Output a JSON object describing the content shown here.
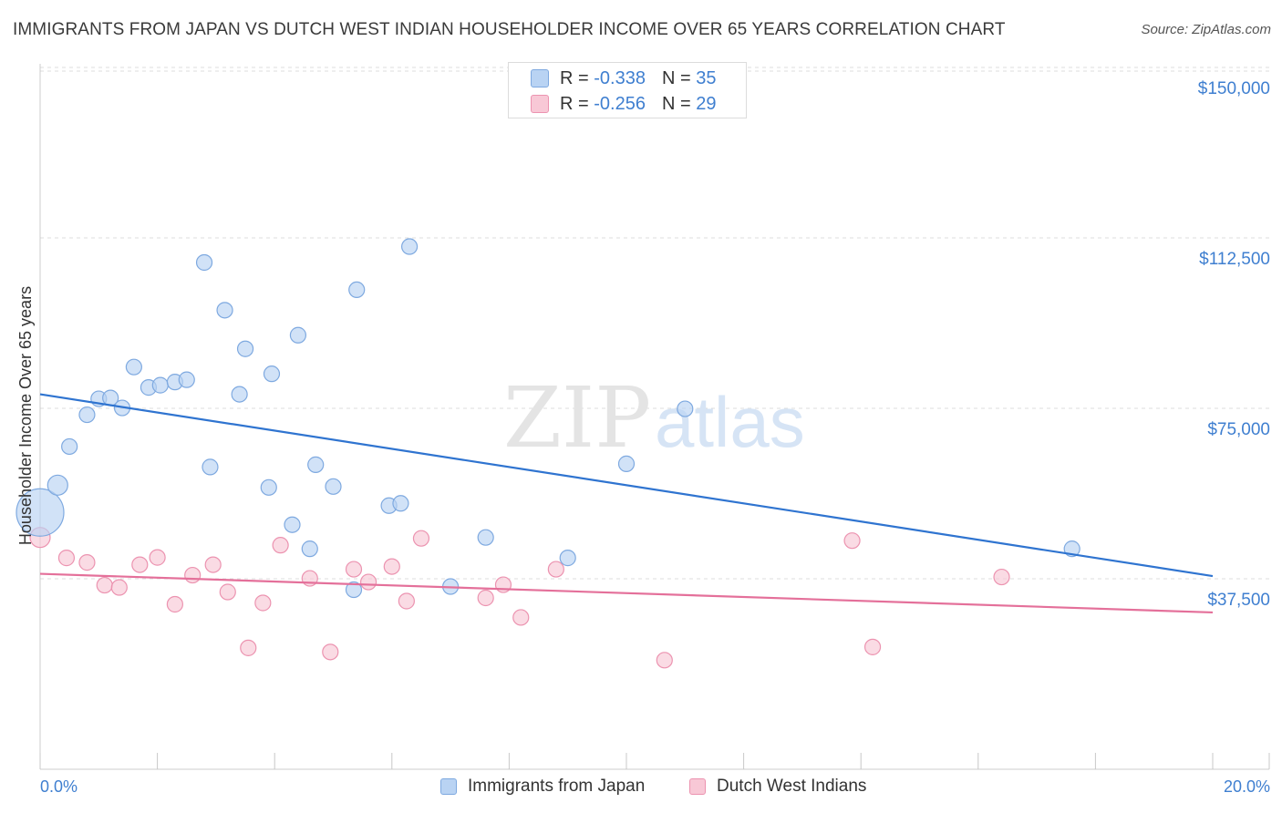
{
  "title": "IMMIGRANTS FROM JAPAN VS DUTCH WEST INDIAN HOUSEHOLDER INCOME OVER 65 YEARS CORRELATION CHART",
  "source": "Source: ZipAtlas.com",
  "watermark": {
    "zip": "ZIP",
    "atlas": "atlas"
  },
  "legend_top": [
    {
      "r_label": "R =",
      "r_value": "-0.338",
      "n_label": "N =",
      "n_value": "35"
    },
    {
      "r_label": "R =",
      "r_value": "-0.256",
      "n_label": "N =",
      "n_value": "29"
    }
  ],
  "legend_bottom": [
    "Immigrants from Japan",
    "Dutch West Indians"
  ],
  "colors": {
    "japan_fill": "#b9d3f3",
    "japan_stroke": "#7ea9e0",
    "japan_line": "#2f74d0",
    "dwi_fill": "#f8c8d6",
    "dwi_stroke": "#ec93b0",
    "dwi_line": "#e4709a",
    "tick_text": "#3f7fd0",
    "grid": "#dddddd"
  },
  "chart_data": {
    "type": "scatter",
    "xlabel": "",
    "ylabel": "Householder Income Over 65 years",
    "xlim": [
      0,
      20
    ],
    "ylim": [
      0,
      158000
    ],
    "x_tick_labels": [
      {
        "value": 0,
        "label": "0.0%"
      },
      {
        "value": 20,
        "label": "20.0%"
      }
    ],
    "y_ticks": [
      {
        "value": 37500,
        "label": "$37,500"
      },
      {
        "value": 75000,
        "label": "$75,000"
      },
      {
        "value": 112500,
        "label": "$112,500"
      },
      {
        "value": 150000,
        "label": "$150,000"
      }
    ],
    "grid": true,
    "legend_position": "bottom",
    "series": [
      {
        "name": "Immigrants from Japan",
        "color": "#b9d3f3",
        "trend": {
          "x": [
            0,
            20
          ],
          "y": [
            82500,
            42500
          ]
        },
        "points": [
          {
            "x": 0.0,
            "y": 56500,
            "s": 3
          },
          {
            "x": 0.3,
            "y": 62500,
            "s": 2
          },
          {
            "x": 0.5,
            "y": 71000,
            "s": 1
          },
          {
            "x": 0.8,
            "y": 78000,
            "s": 1
          },
          {
            "x": 1.0,
            "y": 81500,
            "s": 1
          },
          {
            "x": 1.2,
            "y": 81700,
            "s": 1
          },
          {
            "x": 1.4,
            "y": 79500,
            "s": 1
          },
          {
            "x": 1.6,
            "y": 88500,
            "s": 1
          },
          {
            "x": 1.85,
            "y": 84000,
            "s": 1
          },
          {
            "x": 2.05,
            "y": 84500,
            "s": 1
          },
          {
            "x": 2.3,
            "y": 85200,
            "s": 1
          },
          {
            "x": 2.5,
            "y": 85700,
            "s": 1
          },
          {
            "x": 2.8,
            "y": 111500,
            "s": 1
          },
          {
            "x": 2.9,
            "y": 66500,
            "s": 1
          },
          {
            "x": 3.15,
            "y": 101000,
            "s": 1
          },
          {
            "x": 3.4,
            "y": 82500,
            "s": 1
          },
          {
            "x": 3.5,
            "y": 92500,
            "s": 1
          },
          {
            "x": 3.9,
            "y": 62000,
            "s": 1
          },
          {
            "x": 3.95,
            "y": 87000,
            "s": 1
          },
          {
            "x": 4.3,
            "y": 53800,
            "s": 1
          },
          {
            "x": 4.4,
            "y": 95500,
            "s": 1
          },
          {
            "x": 4.6,
            "y": 48500,
            "s": 1
          },
          {
            "x": 4.7,
            "y": 67000,
            "s": 1
          },
          {
            "x": 5.0,
            "y": 62200,
            "s": 1
          },
          {
            "x": 5.35,
            "y": 39500,
            "s": 1
          },
          {
            "x": 5.4,
            "y": 105500,
            "s": 1
          },
          {
            "x": 5.95,
            "y": 58000,
            "s": 1
          },
          {
            "x": 6.15,
            "y": 58500,
            "s": 1
          },
          {
            "x": 6.3,
            "y": 115000,
            "s": 1
          },
          {
            "x": 7.0,
            "y": 40200,
            "s": 1
          },
          {
            "x": 7.6,
            "y": 51000,
            "s": 1
          },
          {
            "x": 9.0,
            "y": 46500,
            "s": 1
          },
          {
            "x": 10.0,
            "y": 67200,
            "s": 1
          },
          {
            "x": 11.0,
            "y": 79300,
            "s": 1
          },
          {
            "x": 17.6,
            "y": 48500,
            "s": 1
          }
        ]
      },
      {
        "name": "Dutch West Indians",
        "color": "#f8c8d6",
        "trend": {
          "x": [
            0,
            20
          ],
          "y": [
            43000,
            34500
          ]
        },
        "points": [
          {
            "x": 0.0,
            "y": 51000,
            "s": 2
          },
          {
            "x": 0.45,
            "y": 46500,
            "s": 1
          },
          {
            "x": 0.8,
            "y": 45500,
            "s": 1
          },
          {
            "x": 1.1,
            "y": 40500,
            "s": 1
          },
          {
            "x": 1.35,
            "y": 40000,
            "s": 1
          },
          {
            "x": 1.7,
            "y": 45000,
            "s": 1
          },
          {
            "x": 2.0,
            "y": 46600,
            "s": 1
          },
          {
            "x": 2.3,
            "y": 36300,
            "s": 1
          },
          {
            "x": 2.6,
            "y": 42700,
            "s": 1
          },
          {
            "x": 2.95,
            "y": 45000,
            "s": 1
          },
          {
            "x": 3.2,
            "y": 39000,
            "s": 1
          },
          {
            "x": 3.55,
            "y": 26700,
            "s": 1
          },
          {
            "x": 3.8,
            "y": 36600,
            "s": 1
          },
          {
            "x": 4.1,
            "y": 49300,
            "s": 1
          },
          {
            "x": 4.6,
            "y": 42000,
            "s": 1
          },
          {
            "x": 4.95,
            "y": 25800,
            "s": 1
          },
          {
            "x": 5.35,
            "y": 44000,
            "s": 1
          },
          {
            "x": 5.6,
            "y": 41200,
            "s": 1
          },
          {
            "x": 6.0,
            "y": 44600,
            "s": 1
          },
          {
            "x": 6.25,
            "y": 37000,
            "s": 1
          },
          {
            "x": 6.5,
            "y": 50800,
            "s": 1
          },
          {
            "x": 7.6,
            "y": 37700,
            "s": 1
          },
          {
            "x": 7.9,
            "y": 40600,
            "s": 1
          },
          {
            "x": 8.2,
            "y": 33400,
            "s": 1
          },
          {
            "x": 8.8,
            "y": 44000,
            "s": 1
          },
          {
            "x": 10.65,
            "y": 24000,
            "s": 1
          },
          {
            "x": 13.85,
            "y": 50300,
            "s": 1
          },
          {
            "x": 14.2,
            "y": 26900,
            "s": 1
          },
          {
            "x": 16.4,
            "y": 42300,
            "s": 1
          }
        ]
      }
    ]
  }
}
